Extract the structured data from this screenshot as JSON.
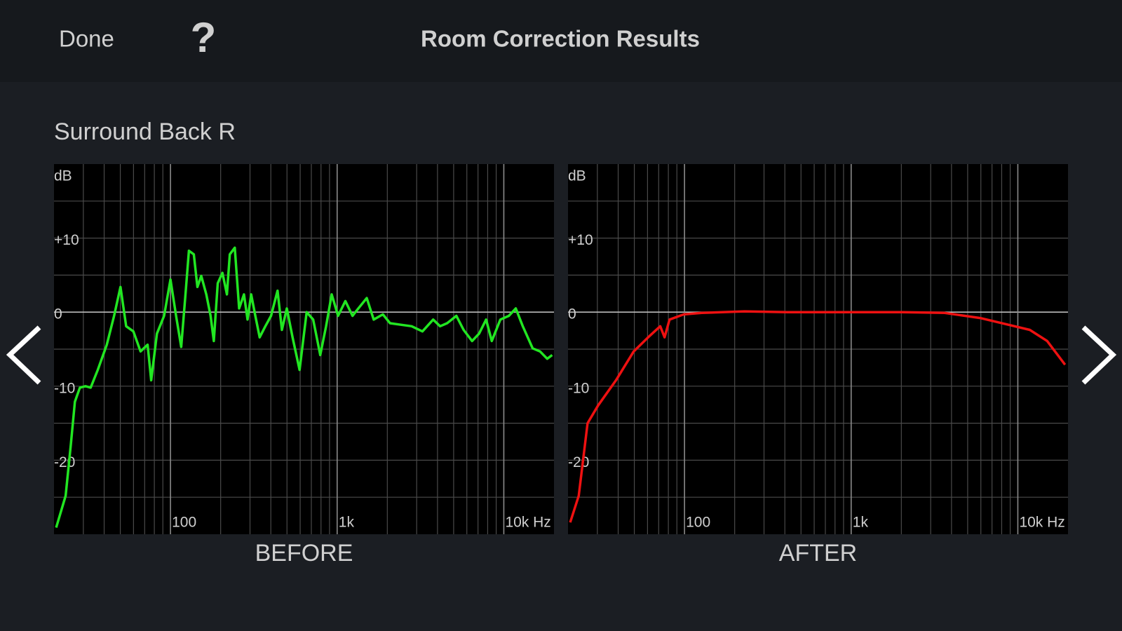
{
  "header": {
    "done": "Done",
    "help": "?",
    "title": "Room Correction Results"
  },
  "channel": "Surround Back R",
  "chart_data": [
    {
      "type": "line",
      "title": "BEFORE",
      "ylabel": "dB",
      "xscale": "log",
      "xlim": [
        20,
        20000
      ],
      "ylim": [
        -30,
        20
      ],
      "xticks": [
        100,
        {
          "value": 1000,
          "label": "1k"
        },
        {
          "value": 10000,
          "label": "10k Hz"
        }
      ],
      "yticks": [
        {
          "value": 10,
          "label": "+10"
        },
        0,
        -10,
        -20
      ],
      "xgrid": [
        30,
        40,
        50,
        60,
        70,
        80,
        90,
        200,
        300,
        400,
        500,
        600,
        700,
        800,
        900,
        2000,
        3000,
        4000,
        5000,
        6000,
        7000,
        8000,
        9000
      ],
      "ygrid": [
        15,
        10,
        5,
        0,
        -5,
        -10,
        -15,
        -20,
        -25
      ],
      "series": [
        {
          "color": "#22e622",
          "x": [
            20.6,
            23.5,
            25.2,
            26.7,
            28.6,
            30.9,
            33.2,
            36.6,
            41.5,
            45.9,
            50.1,
            54.2,
            59.9,
            66.1,
            72.9,
            76.6,
            82.9,
            91.5,
            100,
            108,
            116,
            123,
            129,
            138,
            145,
            153,
            164,
            174,
            182,
            192,
            205,
            218,
            227,
            243,
            258,
            276,
            290,
            305,
            323,
            343,
            371,
            401,
            439,
            466,
            499,
            540,
            595,
            656,
            718,
            792,
            858,
            927,
            1013,
            1120,
            1237,
            1340,
            1505,
            1656,
            1881,
            2077,
            2413,
            2799,
            3247,
            3766,
            4147,
            4568,
            5194,
            5735,
            6450,
            7106,
            7827,
            8468,
            9529,
            10720,
            11800,
            13000,
            14900,
            16500,
            18200,
            19500
          ],
          "values": [
            -29.1,
            -24.8,
            -18,
            -12.1,
            -10.2,
            -10,
            -10.2,
            -7.8,
            -4.4,
            -0.5,
            3.4,
            -1.9,
            -2.6,
            -5.3,
            -4.4,
            -9.2,
            -2.9,
            -0.5,
            4.4,
            -0.5,
            -4.7,
            2.4,
            8.3,
            7.8,
            3.4,
            4.9,
            2.4,
            -0.5,
            -3.9,
            3.9,
            5.3,
            2.4,
            7.8,
            8.7,
            0.5,
            2.4,
            -1,
            2.4,
            -0.5,
            -3.4,
            -1.9,
            -0.5,
            2.9,
            -2.4,
            0.5,
            -3.4,
            -7.8,
            0,
            -1,
            -5.8,
            -1.9,
            2.4,
            -0.5,
            1.5,
            -0.5,
            0.5,
            1.9,
            -1,
            -0.3,
            -1.5,
            -1.7,
            -1.9,
            -2.6,
            -1,
            -1.9,
            -1.5,
            -0.5,
            -2.4,
            -3.9,
            -2.9,
            -1,
            -3.9,
            -1,
            -0.5,
            0.5,
            -1.9,
            -4.9,
            -5.3,
            -6.3,
            -5.8
          ]
        }
      ]
    },
    {
      "type": "line",
      "title": "AFTER",
      "ylabel": "dB",
      "xscale": "log",
      "xlim": [
        20,
        20000
      ],
      "ylim": [
        -30,
        20
      ],
      "xticks": [
        100,
        {
          "value": 1000,
          "label": "1k"
        },
        {
          "value": 10000,
          "label": "10k Hz"
        }
      ],
      "yticks": [
        {
          "value": 10,
          "label": "+10"
        },
        0,
        -10,
        -20
      ],
      "xgrid": [
        30,
        40,
        50,
        60,
        70,
        80,
        90,
        200,
        300,
        400,
        500,
        600,
        700,
        800,
        900,
        2000,
        3000,
        4000,
        5000,
        6000,
        7000,
        8000,
        9000
      ],
      "ygrid": [
        15,
        10,
        5,
        0,
        -5,
        -10,
        -15,
        -20,
        -25
      ],
      "series": [
        {
          "color": "#ee1111",
          "x": [
            20.6,
            23.2,
            26.2,
            30.3,
            38.8,
            49.6,
            60.5,
            71.5,
            75.9,
            81.3,
            99,
            127,
            229,
            414,
            1013,
            2022,
            3637,
            5940,
            8780,
            11800,
            15000,
            19200
          ],
          "values": [
            -28.4,
            -24.8,
            -15,
            -12.6,
            -9.2,
            -5.3,
            -3.4,
            -1.9,
            -3.4,
            -1,
            -0.3,
            -0.1,
            0.1,
            0,
            0,
            0,
            -0.1,
            -0.8,
            -1.7,
            -2.4,
            -3.9,
            -7.1
          ]
        }
      ]
    }
  ]
}
